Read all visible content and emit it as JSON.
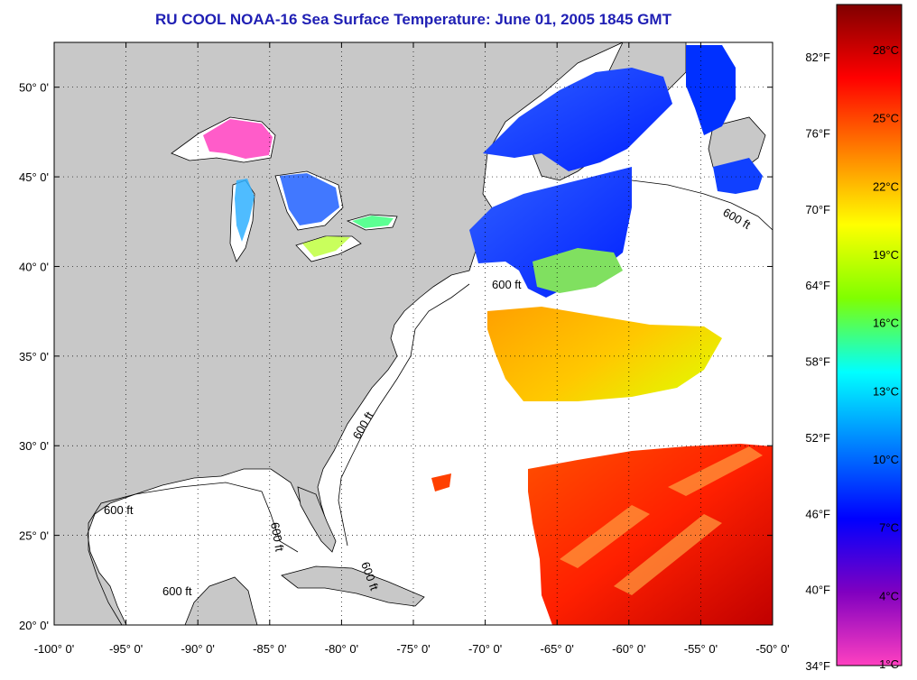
{
  "title": "RU COOL  NOAA-16  Sea Surface Temperature:  June 01, 2005 1845 GMT",
  "map": {
    "lon_range": [
      -100,
      -50
    ],
    "lat_range": [
      20,
      52.5
    ],
    "lon_ticks": [
      "-100° 0'",
      "-95° 0'",
      "-90° 0'",
      "-85° 0'",
      "-80° 0'",
      "-75° 0'",
      "-70° 0'",
      "-65° 0'",
      "-60° 0'",
      "-55° 0'",
      "-50° 0'"
    ],
    "lat_ticks": [
      {
        "lat": 20,
        "label": "20° 0'"
      },
      {
        "lat": 25,
        "label": "25° 0'"
      },
      {
        "lat": 30,
        "label": "30° 0'"
      },
      {
        "lat": 35,
        "label": "35° 0'"
      },
      {
        "lat": 40,
        "label": "40° 0'"
      },
      {
        "lat": 45,
        "label": "45° 0'"
      },
      {
        "lat": 50,
        "label": "50° 0'"
      }
    ],
    "contour_label": "600 ft",
    "colors": {
      "land": "#c8c8c8",
      "water": "#ffffff",
      "coast": "#000000",
      "grid": "#000000"
    }
  },
  "colorbar": {
    "fahrenheit_labels": [
      "82°F",
      "76°F",
      "70°F",
      "64°F",
      "58°F",
      "52°F",
      "46°F",
      "40°F",
      "34°F"
    ],
    "celsius_labels": [
      "28°C",
      "25°C",
      "22°C",
      "19°C",
      "16°C",
      "13°C",
      "10°C",
      "7°C",
      "4°C",
      "1°C"
    ],
    "gradient": [
      "#800000",
      "#ff0000",
      "#ff8000",
      "#ffff00",
      "#80ff00",
      "#00ffff",
      "#0080ff",
      "#0000ff",
      "#8000c0",
      "#ff40c0"
    ]
  }
}
